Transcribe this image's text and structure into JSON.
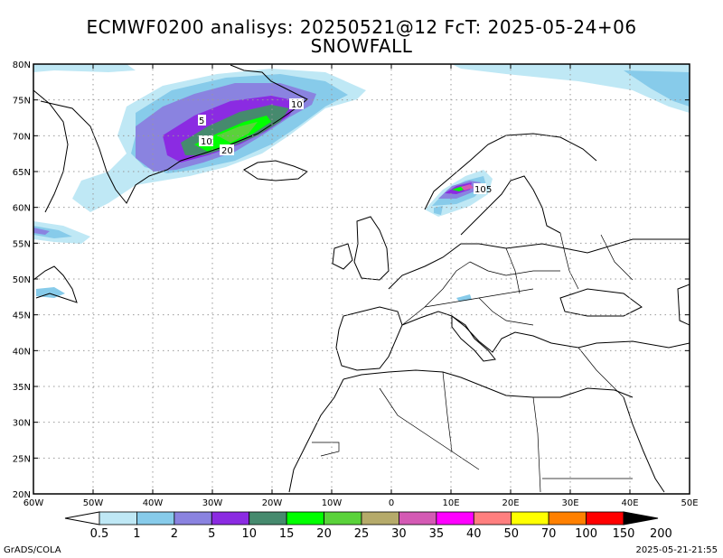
{
  "title": {
    "line1": "ECMWF0200 analisys: 20250521@12 FcT: 2025-05-24+06",
    "line2": "SNOWFALL"
  },
  "axes": {
    "lat_ticks": [
      "80N",
      "75N",
      "70N",
      "65N",
      "60N",
      "55N",
      "50N",
      "45N",
      "40N",
      "35N",
      "30N",
      "25N",
      "20N"
    ],
    "lon_ticks": [
      "60W",
      "50W",
      "40W",
      "30W",
      "20W",
      "10W",
      "0",
      "10E",
      "20E",
      "30E",
      "40E",
      "50E"
    ],
    "lat_range": [
      20,
      80
    ],
    "lon_range": [
      -60,
      50
    ],
    "grid": true
  },
  "colorbar": {
    "labels": [
      "0.5",
      "1",
      "2",
      "5",
      "10",
      "15",
      "20",
      "25",
      "30",
      "35",
      "40",
      "50",
      "70",
      "100",
      "150",
      "200"
    ],
    "colors": [
      "#bfe8f5",
      "#87cbea",
      "#8a83e0",
      "#8b2be2",
      "#468a6e",
      "#00ff00",
      "#5ad23a",
      "#b5aa6a",
      "#d45ab4",
      "#ff00ff",
      "#ff7f7f",
      "#ffff00",
      "#ff8000",
      "#ff0000",
      "#8b0000"
    ]
  },
  "contour_labels": [
    {
      "text": "10"
    },
    {
      "text": "5"
    },
    {
      "text": "10"
    },
    {
      "text": "20"
    },
    {
      "text": "10"
    },
    {
      "text": "5"
    }
  ],
  "footer": {
    "left": "GrADS/COLA",
    "right": "2025-05-21-21:55"
  }
}
